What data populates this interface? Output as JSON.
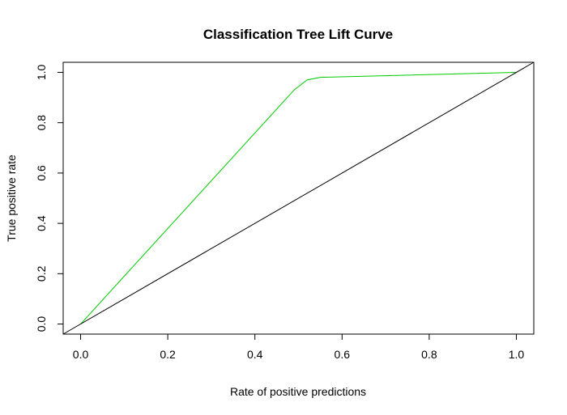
{
  "chart_data": {
    "type": "line",
    "title": "Classification Tree Lift Curve",
    "xlabel": "Rate of positive predictions",
    "ylabel": "True positive rate",
    "xlim": [
      -0.04,
      1.04
    ],
    "ylim": [
      -0.04,
      1.04
    ],
    "x_ticks": [
      0.0,
      0.2,
      0.4,
      0.6,
      0.8,
      1.0
    ],
    "y_ticks": [
      0.0,
      0.2,
      0.4,
      0.6,
      0.8,
      1.0
    ],
    "x_tick_labels": [
      "0.0",
      "0.2",
      "0.4",
      "0.6",
      "0.8",
      "1.0"
    ],
    "y_tick_labels": [
      "0.0",
      "0.2",
      "0.4",
      "0.6",
      "0.8",
      "1.0"
    ],
    "grid": false,
    "legend": "none",
    "series": [
      {
        "color": "#00cc00",
        "x": [
          0.0,
          0.49,
          0.52,
          0.55,
          1.0
        ],
        "y": [
          0.0,
          0.93,
          0.97,
          0.98,
          1.0
        ]
      },
      {
        "color": "#000000",
        "x": [
          -0.04,
          1.04
        ],
        "y": [
          -0.04,
          1.04
        ]
      }
    ]
  }
}
